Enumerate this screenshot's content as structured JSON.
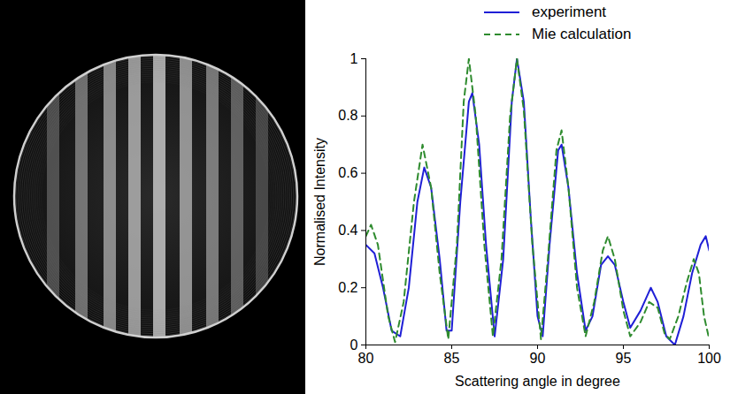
{
  "chart_data": {
    "type": "line",
    "xlabel": "Scattering angle in degree",
    "ylabel": "Normalised Intensity",
    "xlim": [
      80,
      100
    ],
    "xticks": [
      80,
      85,
      90,
      95,
      100
    ],
    "ylim": [
      0,
      1
    ],
    "yticks": [
      0,
      0.2,
      0.4,
      0.6,
      0.8,
      1
    ],
    "grid": false,
    "legend": "top",
    "series": [
      {
        "name": "experiment",
        "color": "#1f1fd6",
        "line_style": "solid",
        "x": [
          80,
          80.5,
          81,
          81.5,
          82,
          82.5,
          83,
          83.4,
          83.8,
          84.3,
          84.7,
          85,
          85.5,
          86,
          86.2,
          86.6,
          87,
          87.5,
          88,
          88.5,
          88.8,
          89.2,
          89.6,
          90,
          90.3,
          90.7,
          91.2,
          91.4,
          91.8,
          92.3,
          92.8,
          93.2,
          93.7,
          94.1,
          94.5,
          95,
          95.4,
          96,
          96.6,
          97,
          97.5,
          98,
          98.5,
          99,
          99.5,
          99.8,
          100
        ],
        "values": [
          0.35,
          0.32,
          0.2,
          0.05,
          0.03,
          0.2,
          0.5,
          0.62,
          0.55,
          0.3,
          0.05,
          0.05,
          0.5,
          0.85,
          0.88,
          0.7,
          0.35,
          0.03,
          0.3,
          0.85,
          1.0,
          0.85,
          0.45,
          0.1,
          0.03,
          0.35,
          0.68,
          0.7,
          0.55,
          0.25,
          0.05,
          0.1,
          0.28,
          0.31,
          0.28,
          0.15,
          0.06,
          0.12,
          0.2,
          0.15,
          0.03,
          0.0,
          0.1,
          0.25,
          0.35,
          0.38,
          0.33
        ]
      },
      {
        "name": "Mie calculation",
        "color": "#2e8b2e",
        "line_style": "dashed",
        "x": [
          80,
          80.3,
          80.7,
          81.3,
          81.7,
          82.2,
          82.8,
          83.3,
          83.8,
          84.3,
          84.8,
          85.3,
          85.7,
          86,
          86.4,
          86.9,
          87.4,
          87.9,
          88.4,
          88.8,
          89.2,
          89.7,
          90.2,
          90.6,
          91.1,
          91.4,
          91.8,
          92.3,
          92.8,
          93.3,
          93.8,
          94.1,
          94.5,
          95,
          95.4,
          96,
          96.5,
          97,
          97.4,
          97.7,
          98.2,
          98.7,
          99.1,
          99.4,
          99.7,
          100
        ],
        "values": [
          0.38,
          0.42,
          0.35,
          0.1,
          0.01,
          0.15,
          0.5,
          0.7,
          0.55,
          0.25,
          0.02,
          0.35,
          0.85,
          1.0,
          0.8,
          0.35,
          0.03,
          0.3,
          0.8,
          1.0,
          0.82,
          0.35,
          0.02,
          0.3,
          0.68,
          0.75,
          0.55,
          0.2,
          0.03,
          0.15,
          0.33,
          0.38,
          0.3,
          0.12,
          0.03,
          0.08,
          0.15,
          0.13,
          0.04,
          0.02,
          0.1,
          0.22,
          0.3,
          0.25,
          0.1,
          0.02
        ]
      }
    ]
  }
}
